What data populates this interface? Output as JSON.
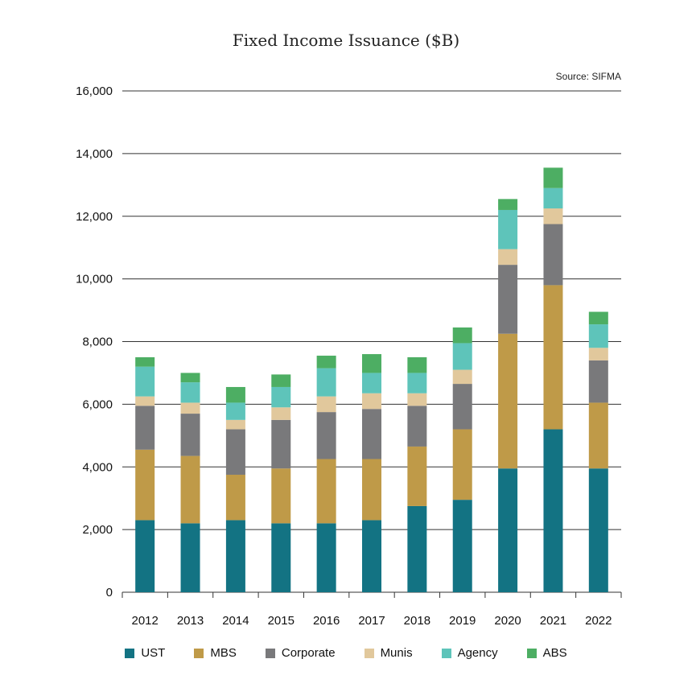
{
  "chart_data": {
    "type": "bar",
    "stacked": true,
    "title": "Fixed Income Issuance ($B)",
    "source": "Source: SIFMA",
    "xlabel": "",
    "ylabel": "",
    "ylim": [
      0,
      16000
    ],
    "yticks": [
      0,
      2000,
      4000,
      6000,
      8000,
      10000,
      12000,
      14000,
      16000
    ],
    "ytick_labels": [
      "0",
      "2,000",
      "4,000",
      "6,000",
      "8,000",
      "10,000",
      "12,000",
      "14,000",
      "16,000"
    ],
    "grid": true,
    "legend_position": "bottom",
    "categories": [
      "2012",
      "2013",
      "2014",
      "2015",
      "2016",
      "2017",
      "2018",
      "2019",
      "2020",
      "2021",
      "2022"
    ],
    "series": [
      {
        "name": "UST",
        "color": "#137383",
        "values": [
          2300,
          2200,
          2300,
          2200,
          2200,
          2300,
          2750,
          2950,
          3950,
          5200,
          3950
        ]
      },
      {
        "name": "MBS",
        "color": "#BF9A48",
        "values": [
          2250,
          2150,
          1450,
          1750,
          2050,
          1950,
          1900,
          2250,
          4300,
          4600,
          2100
        ]
      },
      {
        "name": "Corporate",
        "color": "#79797B",
        "values": [
          1400,
          1350,
          1450,
          1550,
          1500,
          1600,
          1300,
          1450,
          2200,
          1950,
          1350
        ]
      },
      {
        "name": "Munis",
        "color": "#E1C89C",
        "values": [
          300,
          350,
          300,
          400,
          500,
          500,
          400,
          450,
          500,
          500,
          400
        ]
      },
      {
        "name": "Agency",
        "color": "#5EC4BA",
        "values": [
          950,
          650,
          550,
          650,
          900,
          650,
          650,
          850,
          1250,
          650,
          750
        ]
      },
      {
        "name": "ABS",
        "color": "#4DAE63",
        "values": [
          300,
          300,
          500,
          400,
          400,
          600,
          500,
          500,
          350,
          650,
          400
        ]
      }
    ]
  }
}
